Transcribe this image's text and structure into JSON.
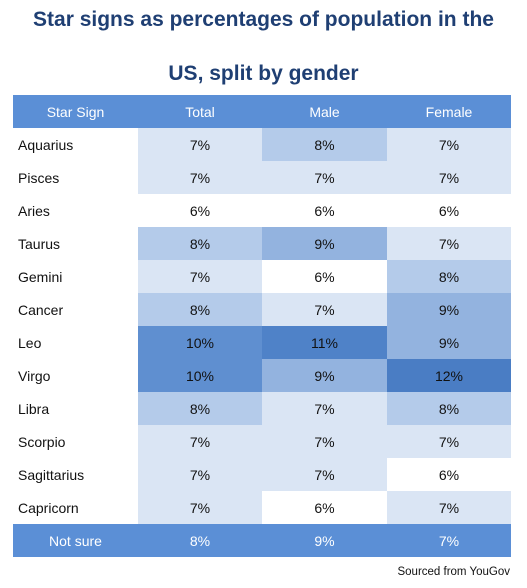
{
  "header": {
    "title_line1": "Star signs as percentages of population in the",
    "title_line2": "US, split by gender"
  },
  "colors": {
    "header_bg": "#5b8fd6",
    "title": "#1f3f73"
  },
  "chart_data": {
    "type": "table",
    "columns": [
      "Star Sign",
      "Total",
      "Male",
      "Female"
    ],
    "rows": [
      {
        "sign": "Aquarius",
        "total": 7,
        "male": 8,
        "female": 7
      },
      {
        "sign": "Pisces",
        "total": 7,
        "male": 7,
        "female": 7
      },
      {
        "sign": "Aries",
        "total": 6,
        "male": 6,
        "female": 6
      },
      {
        "sign": "Taurus",
        "total": 8,
        "male": 9,
        "female": 7
      },
      {
        "sign": "Gemini",
        "total": 7,
        "male": 6,
        "female": 8
      },
      {
        "sign": "Cancer",
        "total": 8,
        "male": 7,
        "female": 9
      },
      {
        "sign": "Leo",
        "total": 10,
        "male": 11,
        "female": 9
      },
      {
        "sign": "Virgo",
        "total": 10,
        "male": 9,
        "female": 12
      },
      {
        "sign": "Libra",
        "total": 8,
        "male": 7,
        "female": 8
      },
      {
        "sign": "Scorpio",
        "total": 7,
        "male": 7,
        "female": 7
      },
      {
        "sign": "Sagittarius",
        "total": 7,
        "male": 7,
        "female": 6
      },
      {
        "sign": "Capricorn",
        "total": 7,
        "male": 6,
        "female": 7
      }
    ],
    "footer": {
      "sign": "Not sure",
      "total": 8,
      "male": 9,
      "female": 7
    },
    "unit": "%"
  },
  "source": "Sourced from YouGov"
}
